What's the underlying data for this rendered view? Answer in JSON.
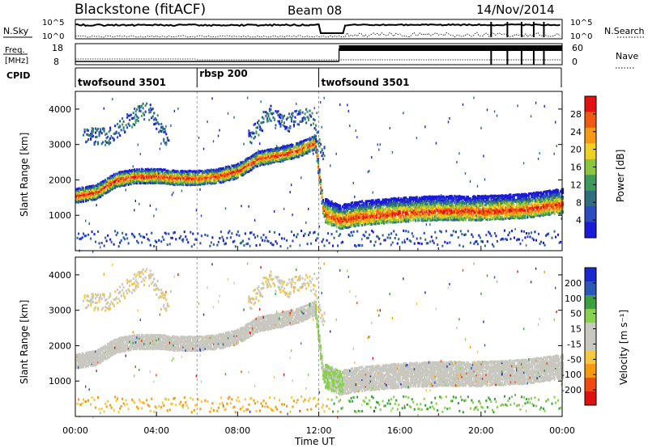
{
  "header": {
    "station": "Blackstone (fitACF)",
    "beam": "Beam 08",
    "date": "14/Nov/2014"
  },
  "top_panels": {
    "nsky_label": "N.Sky",
    "nsky_ticks": [
      "10^5",
      "10^0"
    ],
    "nsearch_label": "N.Search",
    "nsearch_ticks": [
      "10^5",
      "10^0"
    ],
    "freq_label_1": "Freq.",
    "freq_label_2": "[MHz]",
    "freq_ticks": [
      18,
      8
    ],
    "nave_label": "Nave",
    "nave_ticks": [
      60,
      0
    ],
    "cpid_label": "CPID",
    "cpid_segments": [
      {
        "name": "twofsound 3501",
        "start_hour": 0,
        "end_hour": 6
      },
      {
        "name": "rbsp 200",
        "start_hour": 6,
        "end_hour": 12
      },
      {
        "name": "twofsound 3501",
        "start_hour": 12,
        "end_hour": 24
      }
    ]
  },
  "chart_data": [
    {
      "type": "heatmap",
      "title": "",
      "xlabel": "Time UT",
      "ylabel": "Slant Range [km]",
      "x_ticks": [
        "00:00",
        "04:00",
        "08:00",
        "12:00",
        "16:00",
        "20:00",
        "00:00"
      ],
      "y_ticks": [
        1000,
        2000,
        3000,
        4000
      ],
      "ylim": [
        0,
        4500
      ],
      "xlim_hours": [
        0,
        24
      ],
      "colorbar": {
        "label": "Power [dB]",
        "ticks": [
          "28",
          "24",
          "20",
          "16",
          "12",
          "8",
          "4"
        ],
        "range": [
          0,
          30
        ]
      },
      "main_band": [
        [
          0,
          1600
        ],
        [
          1,
          1700
        ],
        [
          2,
          2050
        ],
        [
          3,
          2150
        ],
        [
          4,
          2150
        ],
        [
          5,
          2100
        ],
        [
          6,
          2100
        ],
        [
          7,
          2150
        ],
        [
          8,
          2300
        ],
        [
          9,
          2650
        ],
        [
          10,
          2750
        ],
        [
          11,
          2900
        ],
        [
          11.8,
          3100
        ],
        [
          12.2,
          1200
        ],
        [
          13,
          1000
        ],
        [
          14,
          1100
        ],
        [
          16,
          1200
        ],
        [
          18,
          1250
        ],
        [
          20,
          1250
        ],
        [
          22,
          1300
        ],
        [
          24,
          1450
        ]
      ],
      "upper_band": [
        [
          0.5,
          3300
        ],
        [
          1.5,
          3250
        ],
        [
          2.5,
          3650
        ],
        [
          3.5,
          4050
        ],
        [
          4.5,
          3200
        ],
        [
          8.7,
          3300
        ],
        [
          9.5,
          3900
        ],
        [
          10.5,
          3650
        ],
        [
          11.5,
          3900
        ],
        [
          12.5,
          2300
        ]
      ]
    },
    {
      "type": "heatmap",
      "title": "",
      "xlabel": "Time UT",
      "ylabel": "Slant Range [km]",
      "x_ticks": [
        "00:00",
        "04:00",
        "08:00",
        "12:00",
        "16:00",
        "20:00",
        "00:00"
      ],
      "y_ticks": [
        1000,
        2000,
        3000,
        4000
      ],
      "ylim": [
        0,
        4500
      ],
      "xlim_hours": [
        0,
        24
      ],
      "colorbar": {
        "label": "Velocity [m s⁻¹]",
        "ticks": [
          "200",
          "100",
          "50",
          "15",
          "-15",
          "-50",
          "-100",
          "-200"
        ],
        "range": [
          -250,
          250
        ]
      },
      "ground_scatter_color": "#c8c8c0"
    }
  ],
  "colors": {
    "power_scale": [
      "#1a1ad8",
      "#2a4cc0",
      "#2f6e7e",
      "#3e9a5a",
      "#8cc63c",
      "#f0d020",
      "#f59a10",
      "#f05a10",
      "#e51010"
    ],
    "velocity_scale": [
      "#e01010",
      "#f04a10",
      "#f59a10",
      "#f5c840",
      "#c8c8c0",
      "#c8c8c0",
      "#8ad050",
      "#3aa040",
      "#2a58b8",
      "#1a2ad0"
    ]
  }
}
